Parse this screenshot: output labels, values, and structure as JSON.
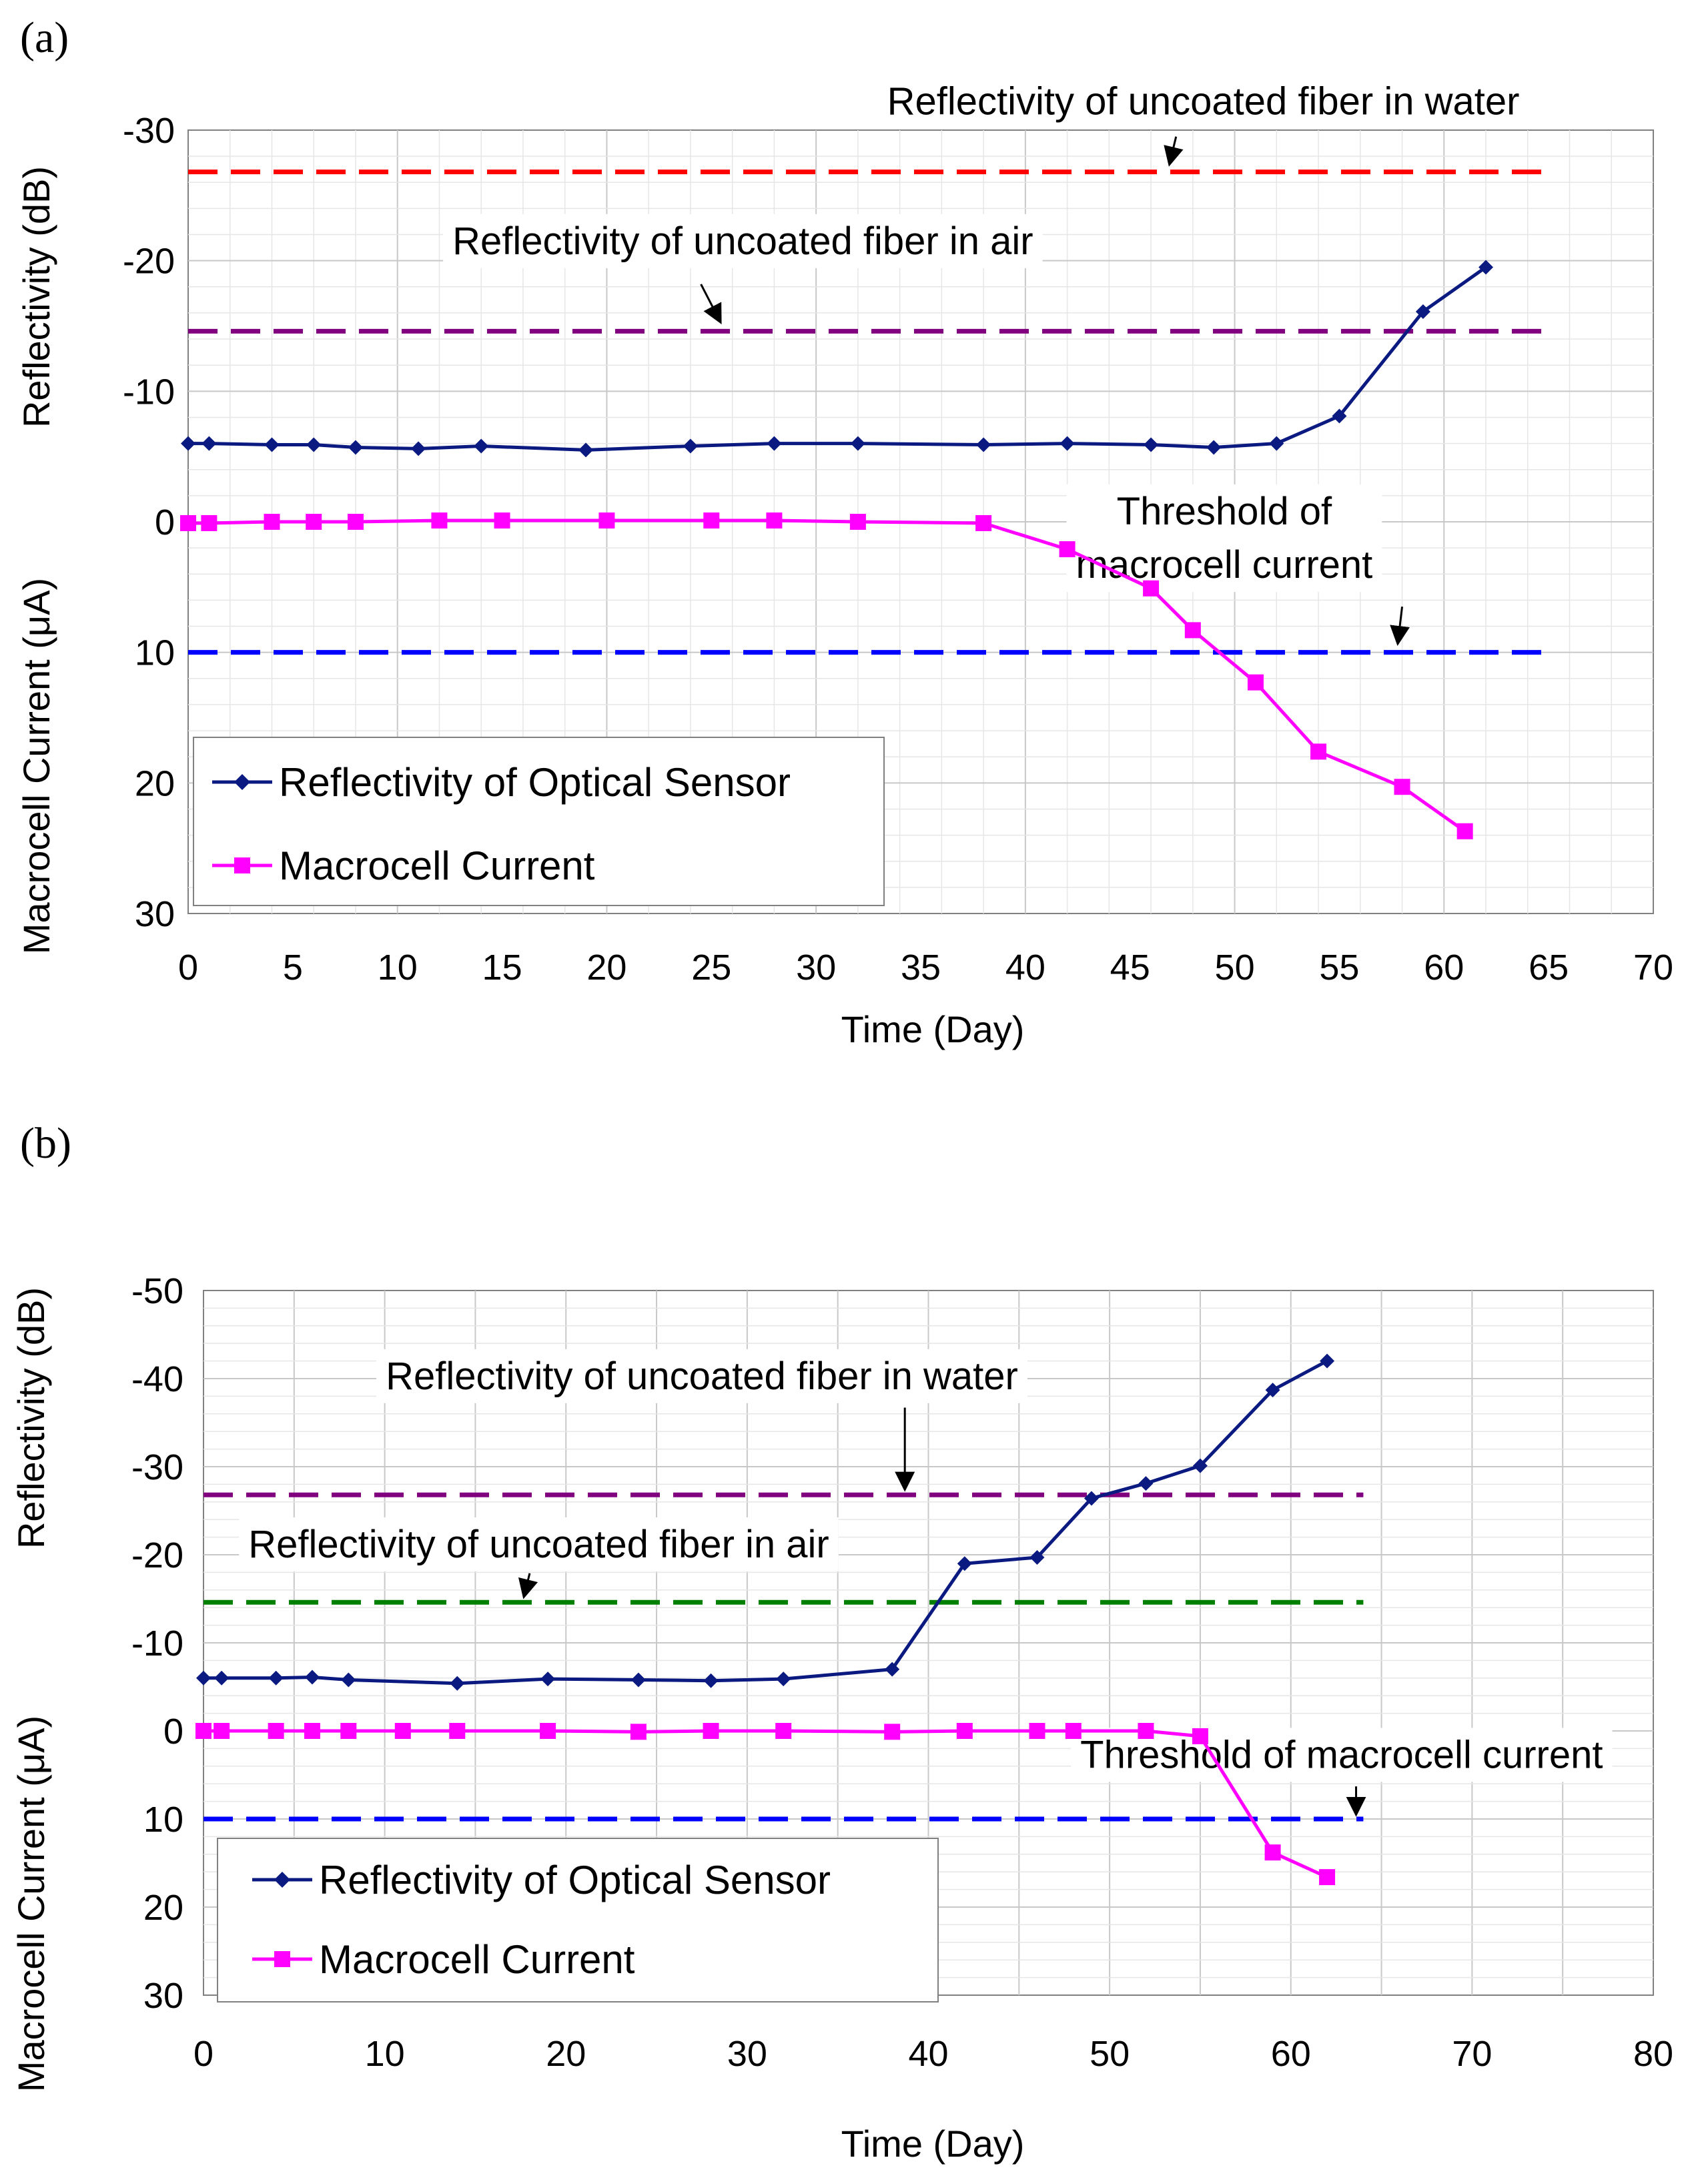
{
  "chart_data": [
    {
      "panel_label": "(a)",
      "type": "line",
      "xlabel": "Time (Day)",
      "ylabel_top": "Reflectivity (dB)",
      "ylabel_bottom": "Macrocell Current (μA)",
      "xlim": [
        0,
        70
      ],
      "ylim": [
        -30,
        30
      ],
      "xticks": [
        "0",
        "5",
        "10",
        "15",
        "20",
        "25",
        "30",
        "35",
        "40",
        "45",
        "50",
        "55",
        "60",
        "65",
        "70"
      ],
      "yticks": [
        "-30",
        "-20",
        "-10",
        "0",
        "10",
        "20",
        "30"
      ],
      "series": [
        {
          "name": "Reflectivity of Optical Sensor",
          "color": "#0b1a80",
          "marker": "diamond",
          "x": [
            0,
            1,
            4,
            6,
            8,
            11,
            14,
            19,
            24,
            28,
            32,
            38,
            42,
            46,
            49,
            52,
            55,
            59,
            62
          ],
          "values": [
            -6.0,
            -6.0,
            -5.9,
            -5.9,
            -5.7,
            -5.6,
            -5.8,
            -5.5,
            -5.8,
            -6.0,
            -6.0,
            -5.9,
            -6.0,
            -5.9,
            -5.7,
            -6.0,
            -8.1,
            -16.1,
            -19.5
          ]
        },
        {
          "name": "Macrocell Current",
          "color": "#ff00ff",
          "marker": "square",
          "x": [
            0,
            1,
            4,
            6,
            8,
            12,
            15,
            20,
            25,
            28,
            32,
            38,
            42,
            46,
            48,
            51,
            54,
            58,
            61
          ],
          "values": [
            0.1,
            0.1,
            0.0,
            0.0,
            0.0,
            -0.1,
            -0.1,
            -0.1,
            -0.1,
            -0.1,
            0.0,
            0.1,
            2.1,
            5.1,
            8.3,
            12.3,
            17.6,
            20.3,
            23.7
          ]
        }
      ],
      "reference_lines": [
        {
          "name": "Reflectivity of uncoated fiber in water",
          "y": -26.8,
          "x_start": 0,
          "x_end": 65,
          "color": "#ff0000"
        },
        {
          "name": "Reflectivity of uncoated fiber in air",
          "y": -14.6,
          "x_start": 0,
          "x_end": 65,
          "color": "#800080"
        },
        {
          "name": "Threshold of macrocell current",
          "y": 10,
          "x_start": 0,
          "x_end": 65,
          "color": "#0000ff"
        }
      ],
      "annotations": [
        {
          "lines": [
            "Reflectivity of uncoated fiber in water"
          ],
          "text_anchor_x": 48.5,
          "text_y": -31.2,
          "arrow_from": [
            47.2,
            -29.5
          ],
          "arrow_to": [
            46.9,
            -27.5
          ]
        },
        {
          "lines": [
            "Reflectivity of uncoated fiber in air"
          ],
          "text_anchor_x": 26.5,
          "text_y": -20.5,
          "arrow_from": [
            24.5,
            -18.2
          ],
          "arrow_to": [
            25.4,
            -15.4
          ]
        },
        {
          "lines": [
            "Threshold of",
            "macrocell current"
          ],
          "text_anchor_x": 49.5,
          "text_y": 0.2,
          "line_step": 4.1,
          "arrow_from": [
            58.0,
            6.5
          ],
          "arrow_to": [
            57.8,
            9.2
          ]
        }
      ],
      "legend": {
        "location": "lower-left"
      }
    },
    {
      "panel_label": "(b)",
      "type": "line",
      "xlabel": "Time (Day)",
      "ylabel_top": "Reflectivity (dB)",
      "ylabel_bottom": "Macrocell Current (μA)",
      "xlim": [
        0,
        80
      ],
      "ylim": [
        -50,
        30
      ],
      "xticks": [
        "0",
        "10",
        "20",
        "30",
        "40",
        "50",
        "60",
        "70",
        "80"
      ],
      "yticks": [
        "-50",
        "-40",
        "-30",
        "-20",
        "-10",
        "0",
        "10",
        "20",
        "30"
      ],
      "series": [
        {
          "name": "Reflectivity of Optical Sensor",
          "color": "#0b1a80",
          "marker": "diamond",
          "x": [
            0,
            1,
            4,
            6,
            8,
            14,
            19,
            24,
            28,
            32,
            38,
            42,
            46,
            49,
            52,
            55,
            59,
            62
          ],
          "values": [
            -6.0,
            -6.0,
            -6.0,
            -6.1,
            -5.8,
            -5.4,
            -5.9,
            -5.8,
            -5.7,
            -5.9,
            -7.0,
            -19.0,
            -19.7,
            -26.4,
            -28.1,
            -30.1,
            -38.7,
            -42.0
          ]
        },
        {
          "name": "Macrocell Current",
          "color": "#ff00ff",
          "marker": "square",
          "x": [
            0,
            1,
            4,
            6,
            8,
            11,
            14,
            19,
            24,
            28,
            32,
            38,
            42,
            46,
            48,
            52,
            55,
            59,
            62
          ],
          "values": [
            0.0,
            0.0,
            0.0,
            0.0,
            0.0,
            0.0,
            0.0,
            0.0,
            0.1,
            0.0,
            0.0,
            0.1,
            0.0,
            0.0,
            0.0,
            0.0,
            0.6,
            13.8,
            16.6
          ]
        }
      ],
      "reference_lines": [
        {
          "name": "Reflectivity of uncoated fiber in water",
          "y": -26.8,
          "x_start": 0,
          "x_end": 64,
          "color": "#800080"
        },
        {
          "name": "Reflectivity of uncoated fiber in air",
          "y": -14.6,
          "x_start": 0,
          "x_end": 64,
          "color": "#008000"
        },
        {
          "name": "Threshold of macrocell current",
          "y": 10,
          "x_start": 0,
          "x_end": 64,
          "color": "#0000ff"
        }
      ],
      "annotations": [
        {
          "lines": [
            "Reflectivity of uncoated fiber in water"
          ],
          "text_anchor_x": 27.5,
          "text_y": -38.8,
          "arrow_from": [
            38.7,
            -36.7
          ],
          "arrow_to": [
            38.7,
            -27.6
          ]
        },
        {
          "lines": [
            "Reflectivity of uncoated fiber in air"
          ],
          "text_anchor_x": 18.5,
          "text_y": -19.7,
          "arrow_from": [
            18.0,
            -17.9
          ],
          "arrow_to": [
            17.7,
            -15.4
          ]
        },
        {
          "lines": [
            "Threshold of macrocell current"
          ],
          "text_anchor_x": 62.8,
          "text_y": 4.2,
          "arrow_from": [
            63.6,
            6.3
          ],
          "arrow_to": [
            63.6,
            9.3
          ]
        }
      ],
      "legend": {
        "location": "lower-left"
      }
    }
  ]
}
